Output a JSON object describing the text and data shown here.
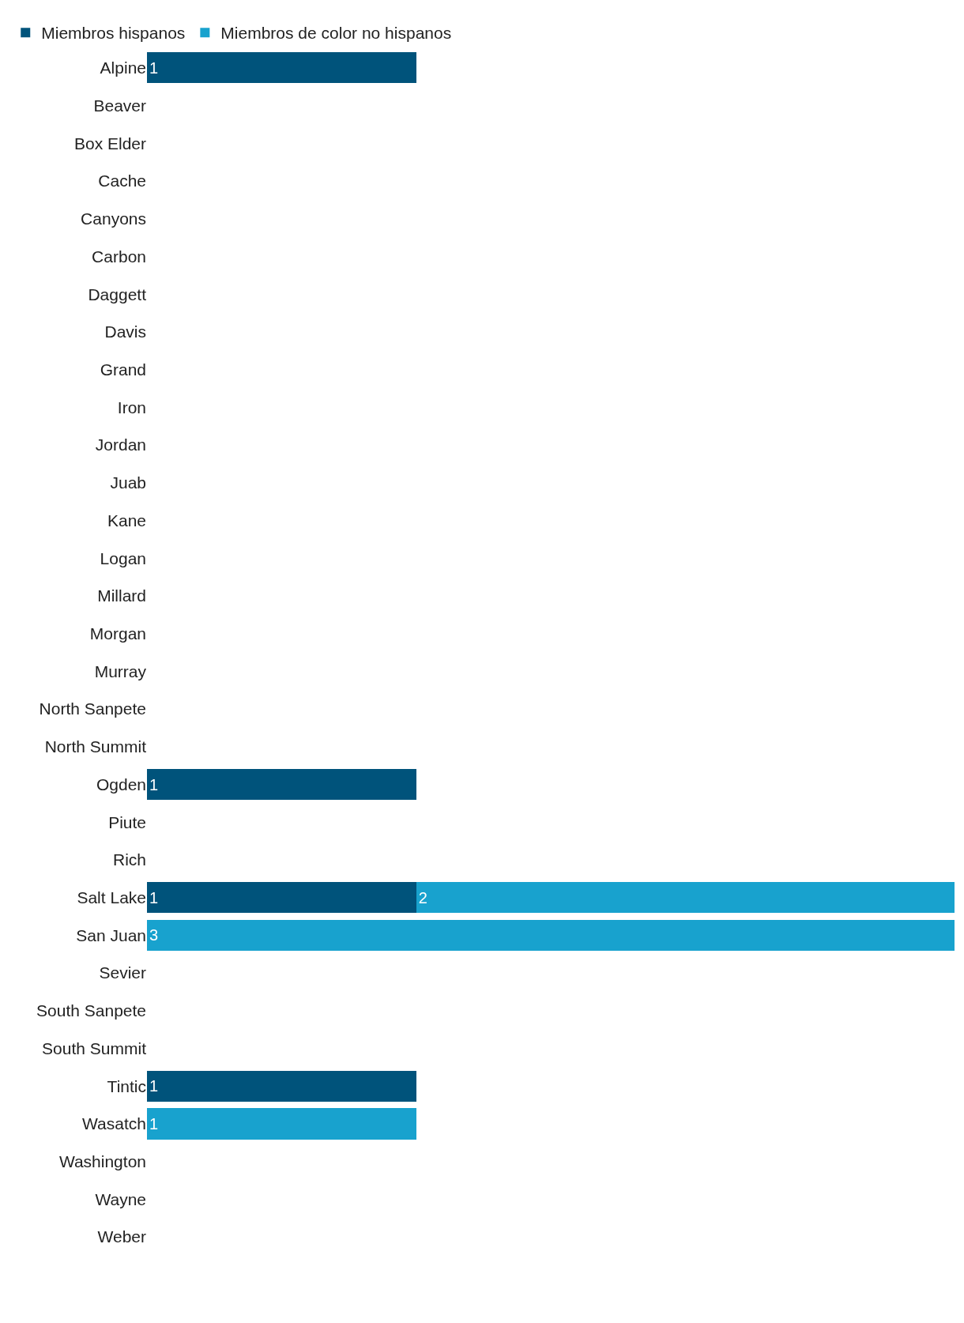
{
  "chart_data": {
    "type": "bar",
    "orientation": "horizontal",
    "stacked": true,
    "legend": "top left",
    "xlim": [
      0,
      3
    ],
    "categories": [
      "Alpine",
      "Beaver",
      "Box Elder",
      "Cache",
      "Canyons",
      "Carbon",
      "Daggett",
      "Davis",
      "Grand",
      "Iron",
      "Jordan",
      "Juab",
      "Kane",
      "Logan",
      "Millard",
      "Morgan",
      "Murray",
      "North Sanpete",
      "North Summit",
      "Ogden",
      "Piute",
      "Rich",
      "Salt Lake",
      "San Juan",
      "Sevier",
      "South Sanpete",
      "South Summit",
      "Tintic",
      "Wasatch",
      "Washington",
      "Wayne",
      "Weber"
    ],
    "series": [
      {
        "name": "Miembros hispanos",
        "color": "#00537b",
        "values": [
          1,
          0,
          0,
          0,
          0,
          0,
          0,
          0,
          0,
          0,
          0,
          0,
          0,
          0,
          0,
          0,
          0,
          0,
          0,
          1,
          0,
          0,
          1,
          0,
          0,
          0,
          0,
          1,
          0,
          0,
          0,
          0
        ],
        "value_labels": [
          "1",
          null,
          null,
          null,
          null,
          null,
          null,
          null,
          null,
          null,
          null,
          null,
          null,
          null,
          null,
          null,
          null,
          null,
          null,
          "1",
          null,
          null,
          "1",
          null,
          null,
          null,
          null,
          "1",
          null,
          null,
          null,
          null
        ]
      },
      {
        "name": "Miembros de color no hispanos",
        "color": "#18a2ce",
        "values": [
          0,
          0,
          0,
          0,
          0,
          0,
          0,
          0,
          0,
          0,
          0,
          0,
          0,
          0,
          0,
          0,
          0,
          0,
          0,
          0,
          0,
          0,
          2,
          3,
          0,
          0,
          0,
          0,
          1,
          0,
          0,
          0
        ],
        "value_labels": [
          null,
          null,
          null,
          null,
          null,
          null,
          null,
          null,
          null,
          null,
          null,
          null,
          null,
          null,
          null,
          null,
          null,
          null,
          null,
          null,
          null,
          null,
          "2",
          "3",
          null,
          null,
          null,
          null,
          "1",
          null,
          null,
          null
        ]
      }
    ]
  }
}
